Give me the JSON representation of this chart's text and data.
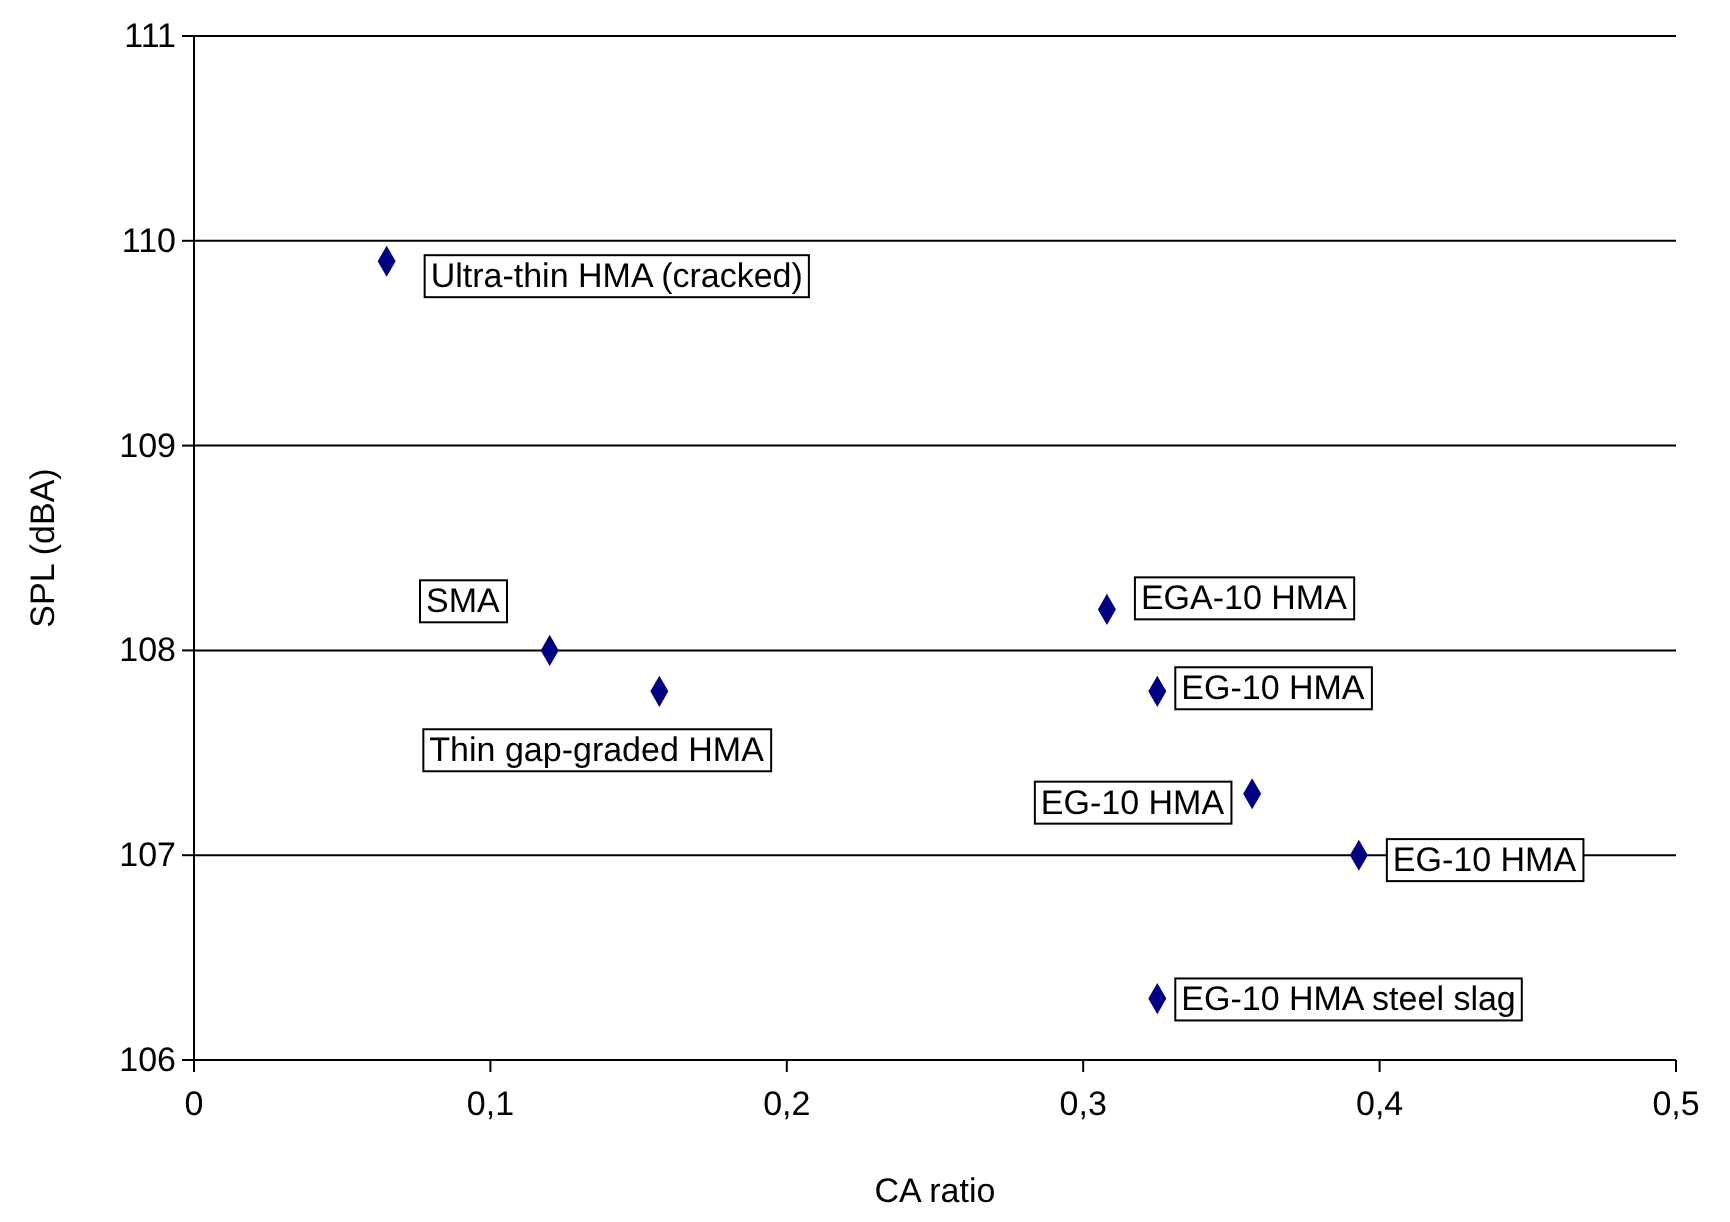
{
  "chart_data": {
    "type": "scatter",
    "xlabel": "CA ratio",
    "ylabel": "SPL (dBA)",
    "x": [
      0.065,
      0.12,
      0.157,
      0.308,
      0.325,
      0.357,
      0.393,
      0.325
    ],
    "values": [
      109.9,
      108.0,
      107.8,
      108.2,
      107.8,
      107.3,
      107.0,
      106.3
    ],
    "color": "#000080",
    "marker": "diamond",
    "grid": "y",
    "xlim": [
      0,
      0.5
    ],
    "xticks": [
      0,
      {
        "value": 0.1,
        "label": "0,1"
      },
      {
        "value": 0.2,
        "label": "0,2"
      },
      {
        "value": 0.3,
        "label": "0,3"
      },
      {
        "value": 0.4,
        "label": "0,4"
      },
      {
        "value": 0.5,
        "label": "0,5"
      }
    ],
    "ylim": [
      106,
      111
    ],
    "yticks": [
      106,
      107,
      108,
      109,
      110,
      111
    ],
    "annotations": [
      {
        "text": "Ultra-thin HMA (cracked)",
        "x": 0.065,
        "y": 109.9
      },
      {
        "text": "SMA",
        "x": 0.12,
        "y": 108.0
      },
      {
        "text": "Thin gap-graded HMA",
        "x": 0.157,
        "y": 107.8
      },
      {
        "text": "EGA-10 HMA",
        "x": 0.308,
        "y": 108.2
      },
      {
        "text": "EG-10 HMA",
        "x": 0.325,
        "y": 107.8
      },
      {
        "text": "EG-10 HMA",
        "x": 0.357,
        "y": 107.3
      },
      {
        "text": "EG-10 HMA",
        "x": 0.393,
        "y": 107.0
      },
      {
        "text": "EG-10 HMA steel slag",
        "x": 0.325,
        "y": 106.3
      }
    ]
  }
}
